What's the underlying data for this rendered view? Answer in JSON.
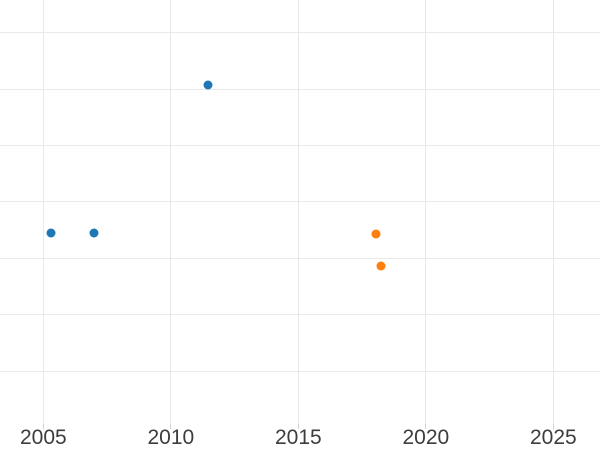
{
  "chart_data": {
    "type": "scatter",
    "title": "",
    "xlabel": "",
    "ylabel": "",
    "grid": true,
    "legend_position": "none",
    "x_range": [
      2003.3,
      2026.83
    ],
    "y_range": [
      0.06,
      7.58
    ],
    "x_ticks": [
      2005,
      2010,
      2015,
      2020,
      2025
    ],
    "x_tick_labels": [
      "2005",
      "2010",
      "2015",
      "2020",
      "2025"
    ],
    "y_gridlines": [
      1,
      2,
      3,
      4,
      5,
      6,
      7
    ],
    "y_tick_labels_visible": false,
    "marker_diameter_px": 9,
    "series": [
      {
        "name": "blue",
        "color": "#1f77b4",
        "points": [
          {
            "x": 2005.3,
            "y": 3.44
          },
          {
            "x": 2007.0,
            "y": 3.44
          },
          {
            "x": 2011.45,
            "y": 6.08
          }
        ]
      },
      {
        "name": "orange",
        "color": "#ff7f0e",
        "points": [
          {
            "x": 2018.05,
            "y": 3.43
          },
          {
            "x": 2018.25,
            "y": 2.87
          }
        ]
      }
    ]
  },
  "style": {
    "background": "#ffffff",
    "gridline_color": "#e9e9e9",
    "tick_color": "#d2d2d2",
    "label_color": "#3d3d3d"
  }
}
